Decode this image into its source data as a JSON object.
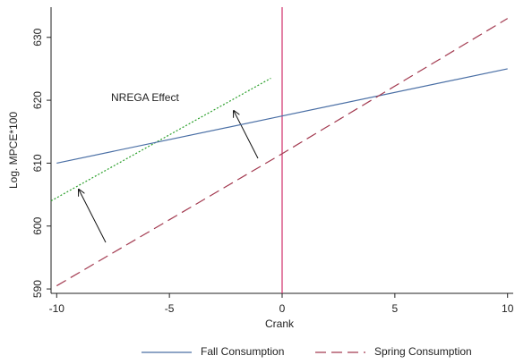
{
  "chart_data": {
    "type": "line",
    "x_label": "Crank",
    "y_label": "Log. MPCE*100",
    "annotation": "NREGA Effect",
    "xlim": [
      -10.25,
      10.25
    ],
    "ylim": [
      589.3,
      634.8
    ],
    "xticks": [
      -10,
      -5,
      0,
      5,
      10
    ],
    "yticks": [
      590,
      600,
      610,
      620,
      630
    ],
    "series": [
      {
        "name": "Fall Consumption",
        "color": "#4a6fa5",
        "dash": "solid",
        "x": [
          -10,
          0,
          10
        ],
        "values": [
          610,
          617.5,
          625
        ]
      },
      {
        "name": "Spring Consumption",
        "color": "#a33a50",
        "dash": "dashed",
        "x": [
          -10,
          0,
          10
        ],
        "values": [
          590.5,
          611.5,
          633
        ]
      }
    ],
    "fit_line": {
      "color": "#2ca02c",
      "x": [
        -10.25,
        -0.5
      ],
      "values": [
        604,
        623.5
      ]
    },
    "vline": {
      "x": 0,
      "color": "#d0306a"
    }
  }
}
